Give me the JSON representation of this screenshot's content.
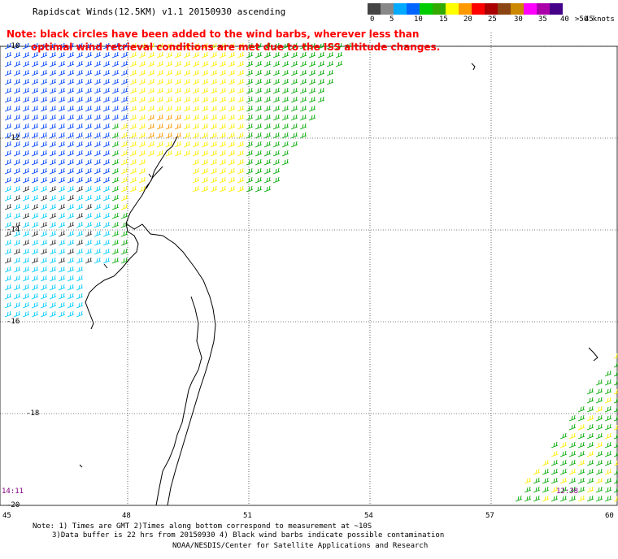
{
  "header": {
    "title": "Rapidscat Winds(12.5KM) v1.1 20150930 ascending",
    "note_line1": "Note: black circles have been added to the wind barbs, wherever less than",
    "note_line2": "optimal wind retrieval conditions are met due to the ISS altitude changes."
  },
  "legend": {
    "colors": [
      "#444444",
      "#888888",
      "#00aaff",
      "#0066ff",
      "#00cc00",
      "#33aa00",
      "#ffff00",
      "#ff9900",
      "#ff0000",
      "#aa0000",
      "#8b4513",
      "#cc8800",
      "#ff00ff",
      "#aa00aa",
      "#440088"
    ],
    "ticks": [
      "0",
      "5",
      "10",
      "15",
      "20",
      "25",
      "30",
      "35",
      "40",
      "45",
      ">50 knots"
    ]
  },
  "axes": {
    "lat_labels": [
      "-10",
      "-12",
      "-14",
      "-16",
      "-18",
      "-20"
    ],
    "lon_labels": [
      "45",
      "48",
      "51",
      "54",
      "57",
      "60"
    ]
  },
  "swath_times": {
    "left": "14:11",
    "right": "12:38"
  },
  "footer": {
    "line1": "Note: 1) Times are GMT 2)Times along bottom correspond to measurement at ~10S",
    "line2": "3)Data buffer is 22 hrs from 20150930 4) Black wind barbs indicate possible contamination",
    "credit": "NOAA/NESDIS/Center for Satellite Applications and Research"
  },
  "map_colors": {
    "coast": "#000000",
    "grid": "#000000",
    "barb_blue": "#0044ff",
    "barb_cyan": "#00ccff",
    "barb_green": "#00aa00",
    "barb_yellow": "#ffee00",
    "barb_orange": "#ff9900",
    "barb_black": "#333333"
  }
}
